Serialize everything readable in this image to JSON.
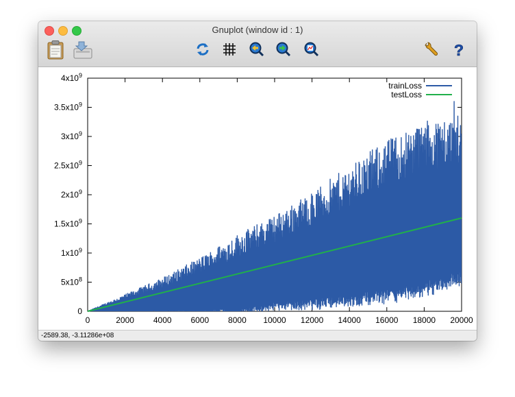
{
  "window": {
    "title": "Gnuplot (window id : 1)"
  },
  "toolbar": {
    "copy_icon": "clipboard-icon",
    "export_icon": "export-icon",
    "replot_icon": "replot-icon",
    "grid_icon": "grid-icon",
    "previous_zoom_icon": "zoom-previous-icon",
    "next_zoom_icon": "zoom-next-icon",
    "autoscale_icon": "autoscale-icon",
    "options_icon": "wrench-icon",
    "help_icon": "help-icon"
  },
  "status": {
    "coordinates": "-2589.38, -3.11286e+08"
  },
  "chart_data": {
    "type": "line",
    "x_ticks": [
      "0",
      "2000",
      "4000",
      "6000",
      "8000",
      "10000",
      "12000",
      "14000",
      "16000",
      "18000",
      "20000"
    ],
    "y_ticks": [
      {
        "value": 0,
        "mantissa": "0",
        "exp": ""
      },
      {
        "value": 500000000,
        "mantissa": "5x10",
        "exp": "8"
      },
      {
        "value": 1000000000,
        "mantissa": "1x10",
        "exp": "9"
      },
      {
        "value": 1500000000,
        "mantissa": "1.5x10",
        "exp": "9"
      },
      {
        "value": 2000000000,
        "mantissa": "2x10",
        "exp": "9"
      },
      {
        "value": 2500000000,
        "mantissa": "2.5x10",
        "exp": "9"
      },
      {
        "value": 3000000000,
        "mantissa": "3x10",
        "exp": "9"
      },
      {
        "value": 3500000000,
        "mantissa": "3.5x10",
        "exp": "9"
      },
      {
        "value": 4000000000,
        "mantissa": "4x10",
        "exp": "9"
      }
    ],
    "xlim": [
      0,
      20000
    ],
    "ylim": [
      0,
      4000000000
    ],
    "legend_position": "top-right",
    "series": [
      {
        "name": "trainLoss",
        "color": "#2c5aa6",
        "style": "noisy band",
        "x": [
          0,
          2000,
          4000,
          6000,
          8000,
          10000,
          12000,
          14000,
          16000,
          18000,
          20000
        ],
        "upper": [
          0,
          250000000,
          500000000,
          800000000,
          1150000000,
          1450000000,
          1800000000,
          2200000000,
          2600000000,
          2900000000,
          3000000000
        ],
        "lower": [
          0,
          0,
          0,
          0,
          0,
          100000000,
          150000000,
          200000000,
          300000000,
          400000000,
          600000000
        ],
        "peak": {
          "x": 19600,
          "y": 3600000000
        }
      },
      {
        "name": "testLoss",
        "color": "#21b04a",
        "x": [
          0,
          20000
        ],
        "y": [
          0,
          1600000000
        ]
      }
    ]
  }
}
